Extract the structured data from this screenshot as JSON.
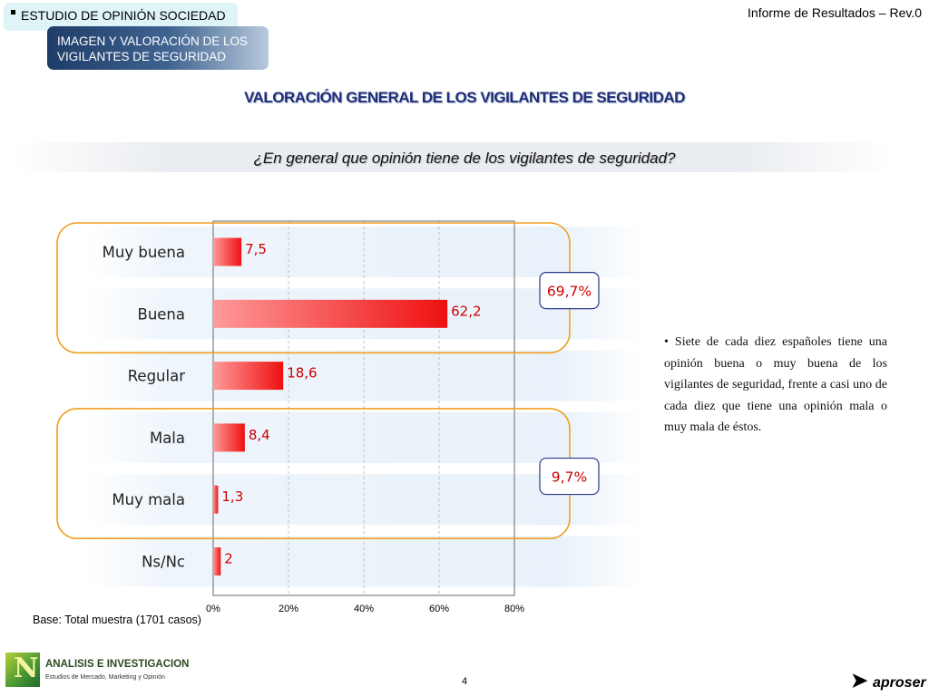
{
  "header": {
    "section_label": "ESTUDIO DE OPINIÓN SOCIEDAD",
    "subsection_label": "IMAGEN Y VALORACIÓN DE LOS VIGILANTES DE SEGURIDAD",
    "report_label": "Informe de Resultados – Rev.0"
  },
  "title": "VALORACIÓN GENERAL DE LOS VIGILANTES DE SEGURIDAD",
  "question": "¿En general que opinión tiene de los vigilantes de seguridad?",
  "chart_data": {
    "type": "bar",
    "orientation": "horizontal",
    "categories": [
      "Muy buena",
      "Buena",
      "Regular",
      "Mala",
      "Muy mala",
      "Ns/Nc"
    ],
    "values": [
      7.5,
      62.2,
      18.6,
      8.4,
      1.3,
      2
    ],
    "value_labels": [
      "7,5",
      "62,2",
      "18,6",
      "8,4",
      "1,3",
      "2"
    ],
    "xlim": [
      0,
      80
    ],
    "x_ticks": [
      "0%",
      "20%",
      "40%",
      "60%",
      "80%"
    ],
    "grid": true,
    "bar_color": "#f01818",
    "value_label_color": "#cc0000",
    "groups": [
      {
        "label": "69,7%",
        "categories": [
          "Muy buena",
          "Buena"
        ]
      },
      {
        "label": "9,7%",
        "categories": [
          "Mala",
          "Muy mala"
        ]
      }
    ],
    "group_border_color": "#f0a020",
    "group_label_border_color": "#2a3a8a"
  },
  "commentary": "Siete de cada diez españoles tiene una opinión buena o muy buena de los vigilantes de seguridad, frente a casi uno de cada diez que tiene una opinión mala o muy mala de éstos.",
  "base_note": "Base: Total muestra (1701 casos)",
  "footer": {
    "logo_title": "ANALISIS E INVESTIGACION",
    "logo_subtitle": "Estudios de Mercado, Marketing y Opinión",
    "page_number": "4",
    "brand_name": "aproser"
  }
}
